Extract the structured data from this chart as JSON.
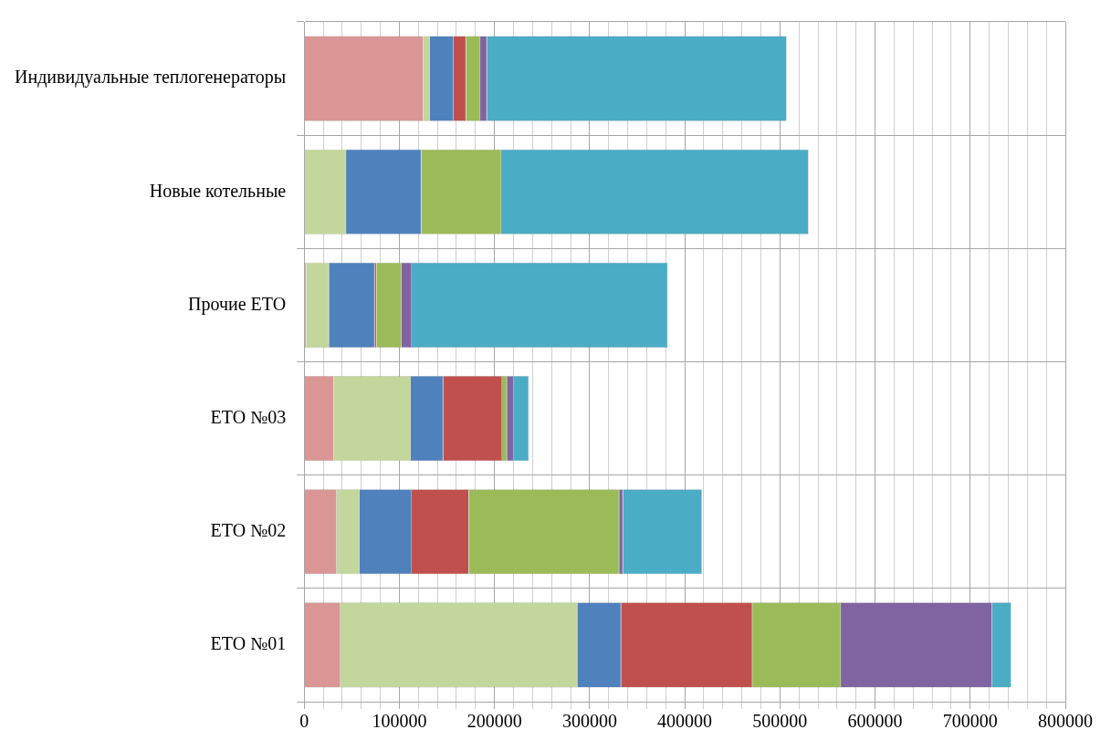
{
  "chart_data": {
    "type": "bar",
    "orientation": "horizontal",
    "stacked": true,
    "categories": [
      "Индивидуальные теплогенераторы",
      "Новые котельные",
      "Прочие ЕТО",
      "ЕТО №03",
      "ЕТО №02",
      "ЕТО №01"
    ],
    "series": [
      {
        "color": "#d99694",
        "values": [
          125000,
          null,
          2000,
          31000,
          34000,
          38000
        ]
      },
      {
        "color": "#c3d69b",
        "values": [
          7000,
          44000,
          24000,
          81000,
          24000,
          249000
        ]
      },
      {
        "color": "#4f81bd",
        "values": [
          25000,
          79000,
          48000,
          34000,
          55000,
          46000
        ]
      },
      {
        "color": "#c0504d",
        "values": [
          13000,
          null,
          2000,
          62000,
          60000,
          138000
        ]
      },
      {
        "color": "#9bbb59",
        "values": [
          15000,
          84000,
          26000,
          5000,
          158000,
          93000
        ]
      },
      {
        "color": "#8064a2",
        "values": [
          7000,
          null,
          11000,
          7000,
          4000,
          159000
        ]
      },
      {
        "color": "#4bacc6",
        "values": [
          315000,
          323000,
          269000,
          16000,
          83000,
          20000
        ]
      }
    ],
    "xlim": [
      0,
      800000
    ],
    "xticks": [
      0,
      {
        "value": 20000,
        "label": null
      },
      {
        "value": 40000,
        "label": null
      },
      {
        "value": 60000,
        "label": null
      },
      {
        "value": 80000,
        "label": null
      },
      100000,
      {
        "value": 120000,
        "label": null
      },
      {
        "value": 140000,
        "label": null
      },
      {
        "value": 160000,
        "label": null
      },
      {
        "value": 180000,
        "label": null
      },
      200000,
      {
        "value": 220000,
        "label": null
      },
      {
        "value": 240000,
        "label": null
      },
      {
        "value": 260000,
        "label": null
      },
      {
        "value": 280000,
        "label": null
      },
      300000,
      {
        "value": 320000,
        "label": null
      },
      {
        "value": 340000,
        "label": null
      },
      {
        "value": 360000,
        "label": null
      },
      {
        "value": 380000,
        "label": null
      },
      400000,
      {
        "value": 420000,
        "label": null
      },
      {
        "value": 440000,
        "label": null
      },
      {
        "value": 460000,
        "label": null
      },
      {
        "value": 480000,
        "label": null
      },
      500000,
      {
        "value": 520000,
        "label": null
      },
      {
        "value": 540000,
        "label": null
      },
      {
        "value": 560000,
        "label": null
      },
      {
        "value": 580000,
        "label": null
      },
      600000,
      {
        "value": 620000,
        "label": null
      },
      {
        "value": 640000,
        "label": null
      },
      {
        "value": 660000,
        "label": null
      },
      {
        "value": 680000,
        "label": null
      },
      700000,
      {
        "value": 720000,
        "label": null
      },
      {
        "value": 740000,
        "label": null
      },
      {
        "value": 760000,
        "label": null
      },
      {
        "value": 780000,
        "label": null
      },
      800000
    ],
    "grid": true,
    "legend": false
  }
}
